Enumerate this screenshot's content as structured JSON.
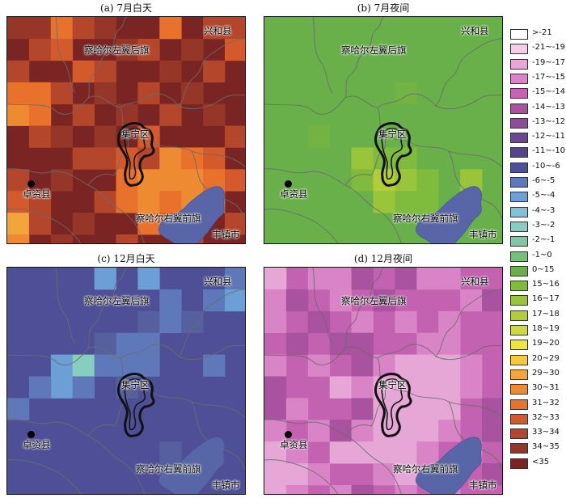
{
  "panels": [
    {
      "id": "a",
      "title": "(a) 7月白天",
      "base": "#7b2424",
      "pattern": "jul_day"
    },
    {
      "id": "b",
      "title": "(b) 7月夜间",
      "base": "#6ab04a",
      "pattern": "jul_night"
    },
    {
      "id": "c",
      "title": "(c) 12月白天",
      "base": "#4e4f97",
      "pattern": "dec_day"
    },
    {
      "id": "d",
      "title": "(d) 12月夜间",
      "base": "#c262b0",
      "pattern": "dec_night"
    }
  ],
  "places": {
    "xinghe": "兴和县",
    "chahar_left": "察哈尔左翼后旗",
    "jining": "集宁区",
    "zhuozi": "卓资县",
    "chahar_right": "察哈尔右翼前旗",
    "fengzhen": "丰镇市"
  },
  "legend": [
    {
      "label": ">-21",
      "color": "#ffffff"
    },
    {
      "label": "-21~-19",
      "color": "#f4cde8"
    },
    {
      "label": "-19~-17",
      "color": "#e6a7d6"
    },
    {
      "label": "-17~-15",
      "color": "#d884c6"
    },
    {
      "label": "-15~-14",
      "color": "#c962b3"
    },
    {
      "label": "-14~-13",
      "color": "#a9529f"
    },
    {
      "label": "-13~-12",
      "color": "#8e4c9a"
    },
    {
      "label": "-12~-11",
      "color": "#6d4595"
    },
    {
      "label": "-11~-10",
      "color": "#54448f"
    },
    {
      "label": "-10~-6",
      "color": "#4e4f97"
    },
    {
      "label": "-6~-5",
      "color": "#5f78b9"
    },
    {
      "label": "-5~-4",
      "color": "#6b9fd6"
    },
    {
      "label": "-4~-3",
      "color": "#80c3d8"
    },
    {
      "label": "-3~-2",
      "color": "#86cfc0"
    },
    {
      "label": "-2~-1",
      "color": "#7ec8a8"
    },
    {
      "label": "-1~0",
      "color": "#78c07a"
    },
    {
      "label": "0~15",
      "color": "#6ab04a"
    },
    {
      "label": "15~16",
      "color": "#7fbb3c"
    },
    {
      "label": "16~17",
      "color": "#9ac43a"
    },
    {
      "label": "17~18",
      "color": "#b3cd38"
    },
    {
      "label": "18~19",
      "color": "#d0d93a"
    },
    {
      "label": "19~20",
      "color": "#efe53c"
    },
    {
      "label": "20~29",
      "color": "#f6c93a"
    },
    {
      "label": "29~30",
      "color": "#f2a53a"
    },
    {
      "label": "30~31",
      "color": "#ee8a32"
    },
    {
      "label": "31~32",
      "color": "#e8712c"
    },
    {
      "label": "32~33",
      "color": "#d45a2c"
    },
    {
      "label": "33~34",
      "color": "#b4462c"
    },
    {
      "label": "34~35",
      "color": "#963628"
    },
    {
      "label": "<35",
      "color": "#7b2424"
    }
  ],
  "colors": {
    "county_line": "#6b6b6b",
    "lake": "#5866a8",
    "urban_outline": "#111111"
  }
}
